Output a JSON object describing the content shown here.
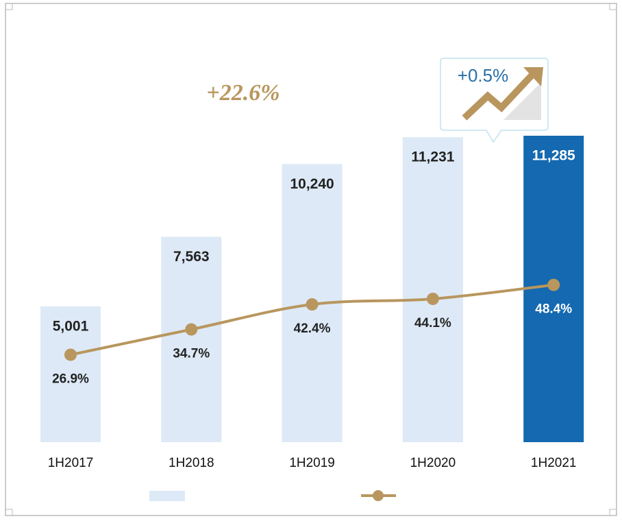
{
  "chart_data": {
    "type": "bar-line",
    "categories": [
      "1H2017",
      "1H2018",
      "1H2019",
      "1H2020",
      "1H2021"
    ],
    "series": [
      {
        "type": "bar",
        "colors": [
          "#dde9f6",
          "#dde9f6",
          "#dde9f6",
          "#dde9f6",
          "#1469b0"
        ],
        "values": [
          5001,
          7563,
          10240,
          11231,
          11285
        ],
        "value_labels": [
          "5,001",
          "7,563",
          "10,240",
          "11,231",
          "11,285"
        ]
      },
      {
        "type": "line",
        "axis": "y2",
        "color": "#b8965e",
        "values": [
          26.9,
          34.7,
          42.4,
          44.1,
          48.4
        ],
        "value_labels": [
          "26.9%",
          "34.7%",
          "42.4%",
          "44.1%",
          "48.4%"
        ]
      }
    ],
    "annotations": [
      "+22.6%",
      "+0.5%"
    ]
  }
}
